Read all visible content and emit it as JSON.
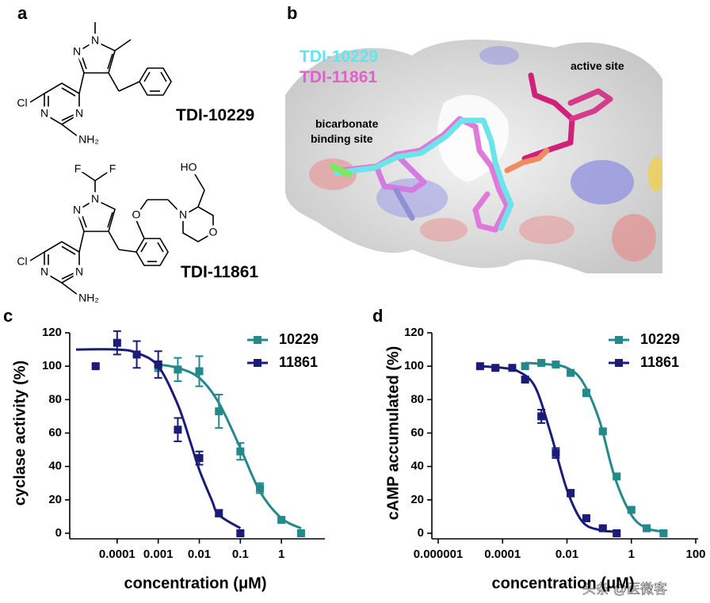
{
  "panel_labels": [
    "a",
    "b",
    "c",
    "d"
  ],
  "structures": [
    {
      "name": "TDI-10229",
      "atoms": [
        "N",
        "N",
        "Cl",
        "N",
        "N",
        "NH₂"
      ]
    },
    {
      "name": "TDI-11861",
      "atoms": [
        "F",
        "F",
        "N",
        "N",
        "O",
        "N",
        "HO",
        "O",
        "Cl",
        "N",
        "N",
        "NH₂"
      ]
    }
  ],
  "docking": {
    "legend": [
      "TDI-10229",
      "TDI-11861"
    ],
    "labels": [
      "active site",
      "bicarbonate",
      "binding site"
    ]
  },
  "chart_data": [
    {
      "type": "scatter",
      "xlabel": "concentration (μM)",
      "ylabel": "cyclase activity (%)",
      "log_x": true,
      "xlim": [
        1e-05,
        10
      ],
      "ylim": [
        0,
        120
      ],
      "xticks": [
        0.0001,
        0.001,
        0.01,
        0.1,
        1
      ],
      "yticks": [
        0,
        20,
        40,
        60,
        80,
        100,
        120
      ],
      "legend": "upper right",
      "series": [
        {
          "name": "10229",
          "color": "#23898b",
          "x": [
            0.001,
            0.003,
            0.01,
            0.03,
            0.1,
            0.3,
            1,
            3
          ],
          "values": [
            100,
            98,
            97,
            73,
            49,
            27,
            8,
            0
          ],
          "errors": [
            3,
            7,
            9,
            10,
            5,
            3,
            1,
            1
          ],
          "fit_x": [
            0.001,
            0.003,
            0.01,
            0.03,
            0.1,
            0.3,
            1,
            3
          ],
          "fit_values": [
            101,
            99,
            93,
            78,
            51,
            25,
            9,
            3
          ]
        },
        {
          "name": "11861",
          "color": "#1b1b78",
          "x": [
            3e-05,
            0.0001,
            0.0003,
            0.001,
            0.003,
            0.01,
            0.03,
            0.1
          ],
          "values": [
            100,
            114,
            107,
            101,
            62,
            45,
            12,
            0
          ],
          "errors": [
            1,
            7,
            8,
            8,
            7,
            4,
            2,
            1
          ],
          "fit_x": [
            1e-05,
            0.0001,
            0.0003,
            0.001,
            0.003,
            0.006,
            0.01,
            0.02,
            0.03,
            0.1
          ],
          "fit_values": [
            110,
            110,
            108,
            100,
            77,
            55,
            38,
            20,
            11,
            3
          ]
        }
      ]
    },
    {
      "type": "scatter",
      "xlabel": "concentration (μM)",
      "ylabel": "cAMP accumulated (%)",
      "log_x": true,
      "xlim": [
        1e-06,
        100
      ],
      "ylim": [
        0,
        120
      ],
      "xticks": [
        1e-06,
        0.0001,
        0.01,
        1,
        100
      ],
      "yticks": [
        0,
        20,
        40,
        60,
        80,
        100,
        120
      ],
      "legend": "upper right",
      "series": [
        {
          "name": "10229",
          "color": "#23898b",
          "x": [
            0.0005,
            0.0016,
            0.0045,
            0.013,
            0.04,
            0.13,
            0.35,
            1,
            3,
            10
          ],
          "values": [
            100,
            102,
            101,
            96,
            84,
            61,
            34,
            14,
            3,
            0
          ],
          "errors": [
            1,
            1,
            1,
            1,
            2,
            1,
            1,
            1,
            1,
            1
          ],
          "fit_x": [
            0.0005,
            0.003,
            0.01,
            0.03,
            0.1,
            0.3,
            1,
            3,
            10
          ],
          "fit_values": [
            102,
            101,
            99,
            91,
            68,
            34,
            11,
            3,
            1
          ]
        },
        {
          "name": "11861",
          "color": "#1b1b78",
          "x": [
            2e-05,
            6e-05,
            0.0002,
            0.0005,
            0.0016,
            0.0045,
            0.013,
            0.04,
            0.13,
            0.35
          ],
          "values": [
            100,
            99,
            99,
            92,
            70,
            48,
            24,
            9,
            3,
            0
          ],
          "errors": [
            1,
            1,
            1,
            1,
            4,
            3,
            2,
            1,
            1,
            1
          ],
          "fit_x": [
            2e-05,
            0.0001,
            0.0003,
            0.001,
            0.003,
            0.01,
            0.03,
            0.1,
            0.3
          ],
          "fit_values": [
            100,
            99,
            97,
            88,
            61,
            26,
            7,
            2,
            1
          ]
        }
      ]
    }
  ],
  "watermark": "头条 @医微客"
}
